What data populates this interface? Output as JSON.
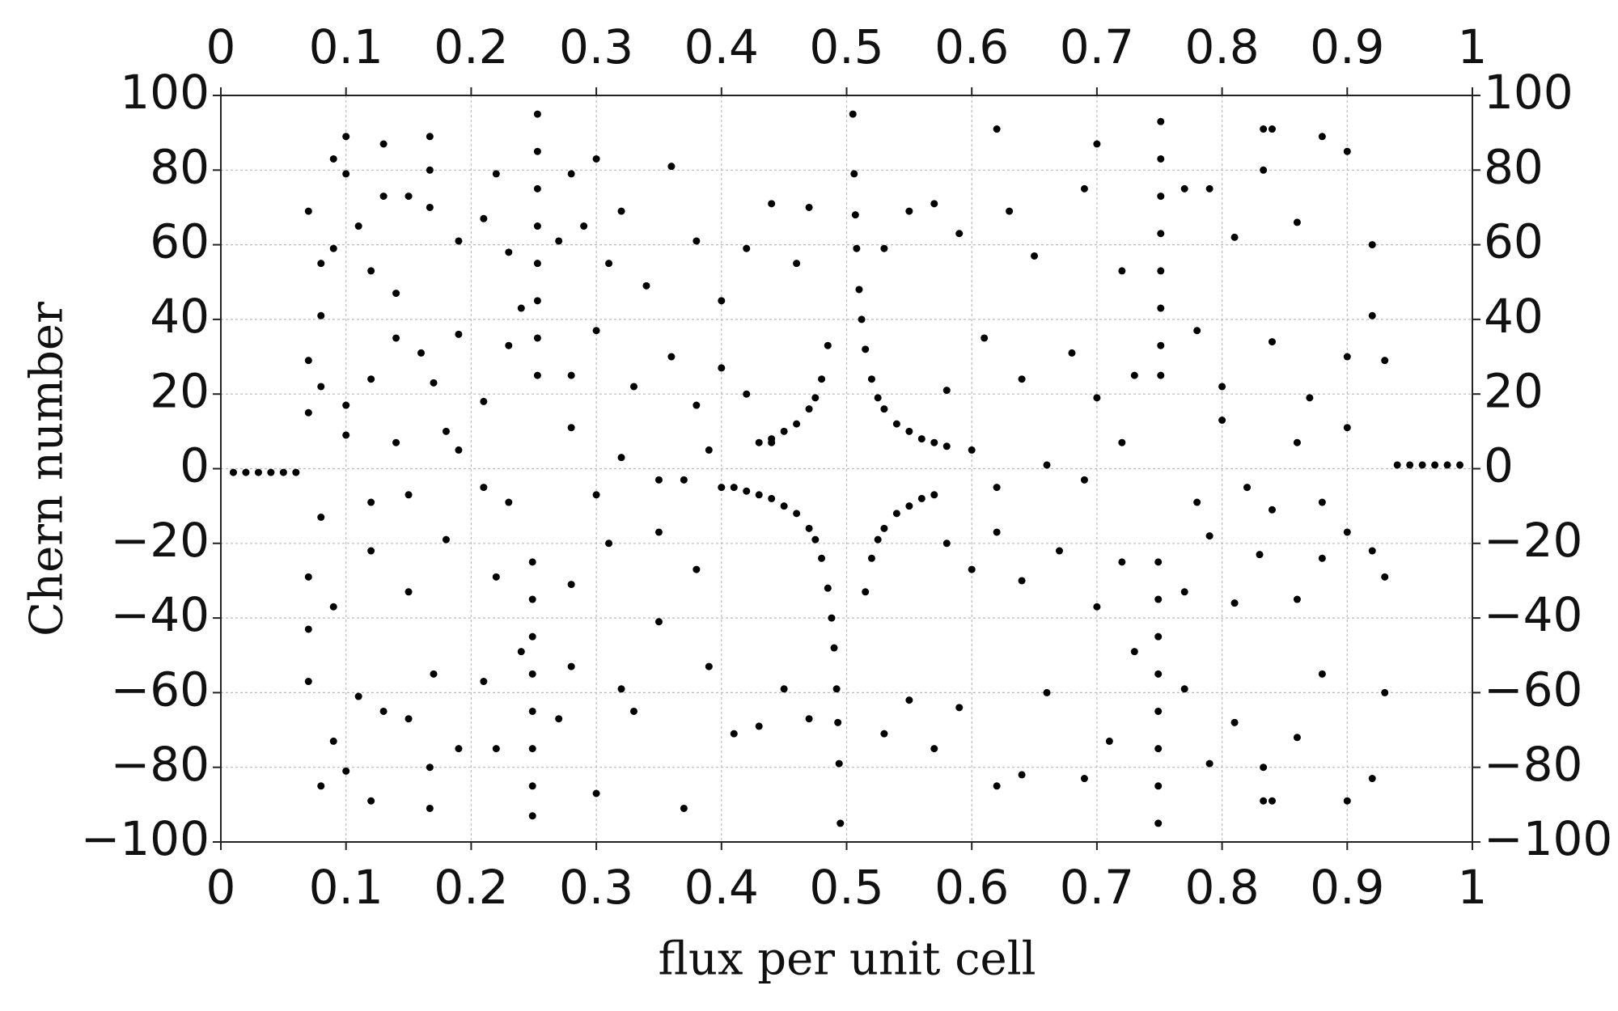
{
  "chart_data": {
    "type": "scatter",
    "x_label": "flux per unit cell",
    "y_label": "Chern number",
    "color": "#000000",
    "grid": true,
    "xlim": [
      0,
      1
    ],
    "ylim": [
      -100,
      100
    ],
    "xticks": [
      0,
      0.1,
      0.2,
      0.3,
      0.4,
      0.5,
      0.6,
      0.7,
      0.8,
      0.9,
      1
    ],
    "yticks": [
      {
        "value": -100,
        "label": "−100"
      },
      {
        "value": -80,
        "label": "−80"
      },
      {
        "value": -60,
        "label": "−60"
      },
      {
        "value": -40,
        "label": "−40"
      },
      {
        "value": -20,
        "label": "−20"
      },
      0,
      20,
      40,
      60,
      80,
      100
    ],
    "x": [
      0.505,
      0.506,
      0.507,
      0.508,
      0.51,
      0.512,
      0.515,
      0.52,
      0.525,
      0.53,
      0.54,
      0.55,
      0.56,
      0.57,
      0.58,
      0.6,
      0.495,
      0.494,
      0.493,
      0.492,
      0.49,
      0.488,
      0.485,
      0.48,
      0.475,
      0.47,
      0.46,
      0.45,
      0.44,
      0.43,
      0.42,
      0.4,
      0.485,
      0.48,
      0.475,
      0.47,
      0.46,
      0.45,
      0.44,
      0.43,
      0.515,
      0.52,
      0.525,
      0.53,
      0.54,
      0.55,
      0.56,
      0.57,
      0.01,
      0.02,
      0.03,
      0.04,
      0.05,
      0.06,
      0.94,
      0.95,
      0.96,
      0.97,
      0.98,
      0.99,
      0.249,
      0.249,
      0.249,
      0.249,
      0.249,
      0.249,
      0.249,
      0.249,
      0.253,
      0.253,
      0.253,
      0.253,
      0.253,
      0.253,
      0.253,
      0.253,
      0.749,
      0.749,
      0.749,
      0.749,
      0.749,
      0.749,
      0.749,
      0.749,
      0.751,
      0.751,
      0.751,
      0.751,
      0.751,
      0.751,
      0.751,
      0.751,
      0.167,
      0.167,
      0.167,
      0.167,
      0.167,
      0.833,
      0.833,
      0.833,
      0.833,
      0.14,
      0.15,
      0.18,
      0.19,
      0.21,
      0.23,
      0.28,
      0.3,
      0.32,
      0.35,
      0.37,
      0.39,
      0.41,
      0.44,
      0.62,
      0.66,
      0.69,
      0.72,
      0.78,
      0.8,
      0.82,
      0.84,
      0.86,
      0.88,
      0.9,
      0.12,
      0.1,
      0.08,
      0.07,
      0.07,
      0.08,
      0.08,
      0.09,
      0.09,
      0.1,
      0.1,
      0.11,
      0.12,
      0.13,
      0.13,
      0.14,
      0.15,
      0.16,
      0.19,
      0.21,
      0.22,
      0.23,
      0.24,
      0.27,
      0.28,
      0.29,
      0.3,
      0.31,
      0.32,
      0.34,
      0.36,
      0.38,
      0.4,
      0.42,
      0.44,
      0.46,
      0.47,
      0.07,
      0.07,
      0.08,
      0.09,
      0.1,
      0.11,
      0.12,
      0.13,
      0.15,
      0.17,
      0.19,
      0.21,
      0.22,
      0.24,
      0.27,
      0.28,
      0.3,
      0.32,
      0.33,
      0.35,
      0.37,
      0.39,
      0.41,
      0.43,
      0.45,
      0.47,
      0.53,
      0.55,
      0.57,
      0.59,
      0.62,
      0.64,
      0.66,
      0.69,
      0.71,
      0.73,
      0.77,
      0.79,
      0.81,
      0.84,
      0.86,
      0.88,
      0.9,
      0.92,
      0.93,
      0.53,
      0.55,
      0.57,
      0.59,
      0.62,
      0.63,
      0.65,
      0.69,
      0.7,
      0.72,
      0.77,
      0.79,
      0.81,
      0.84,
      0.86,
      0.88,
      0.9,
      0.92,
      0.93,
      0.07,
      0.08,
      0.1,
      0.12,
      0.14,
      0.17,
      0.19,
      0.21,
      0.23,
      0.28,
      0.3,
      0.33,
      0.36,
      0.38,
      0.4,
      0.42,
      0.58,
      0.6,
      0.62,
      0.64,
      0.67,
      0.7,
      0.72,
      0.77,
      0.79,
      0.81,
      0.83,
      0.86,
      0.88,
      0.9,
      0.92,
      0.93,
      0.07,
      0.09,
      0.12,
      0.15,
      0.18,
      0.22,
      0.28,
      0.31,
      0.35,
      0.38,
      0.58,
      0.61,
      0.64,
      0.68,
      0.7,
      0.73,
      0.78,
      0.8,
      0.84,
      0.87,
      0.9,
      0.92
    ],
    "values": [
      95,
      79,
      68,
      59,
      48,
      40,
      32,
      24,
      19,
      16,
      12,
      10,
      8,
      7,
      6,
      5,
      -95,
      -79,
      -68,
      -59,
      -48,
      -40,
      -32,
      -24,
      -19,
      -16,
      -12,
      -10,
      -8,
      -7,
      -6,
      -5,
      33,
      24,
      19,
      16,
      12,
      10,
      8,
      7,
      -33,
      -24,
      -19,
      -16,
      -12,
      -10,
      -8,
      -7,
      -1,
      -1,
      -1,
      -1,
      -1,
      -1,
      1,
      1,
      1,
      1,
      1,
      1,
      -93,
      -85,
      -75,
      -65,
      -55,
      -45,
      -35,
      -25,
      95,
      85,
      75,
      65,
      55,
      45,
      35,
      25,
      -95,
      -85,
      -75,
      -65,
      -55,
      -45,
      -35,
      -25,
      93,
      83,
      73,
      63,
      53,
      43,
      33,
      25,
      89,
      80,
      70,
      -80,
      -91,
      91,
      80,
      -80,
      -89,
      7,
      -7,
      10,
      5,
      -5,
      -9,
      11,
      -7,
      3,
      -3,
      -3,
      5,
      -5,
      7,
      -5,
      1,
      -3,
      7,
      -9,
      13,
      -5,
      -11,
      7,
      -9,
      11,
      -9,
      9,
      -13,
      15,
      69,
      55,
      41,
      83,
      59,
      89,
      79,
      65,
      53,
      87,
      73,
      47,
      73,
      31,
      61,
      67,
      79,
      58,
      43,
      61,
      79,
      65,
      83,
      55,
      69,
      49,
      81,
      61,
      45,
      59,
      71,
      55,
      70,
      -43,
      -57,
      -85,
      -73,
      -81,
      -61,
      -89,
      -65,
      -67,
      -55,
      -75,
      -57,
      -75,
      -49,
      -67,
      -53,
      -87,
      -59,
      -65,
      -41,
      -91,
      -53,
      -71,
      -69,
      -59,
      -67,
      -71,
      -62,
      -75,
      -64,
      -85,
      -82,
      -60,
      -83,
      -73,
      -49,
      -59,
      -79,
      -68,
      -89,
      -72,
      -55,
      -89,
      -83,
      -60,
      59,
      69,
      71,
      63,
      91,
      69,
      57,
      75,
      87,
      53,
      75,
      75,
      62,
      91,
      66,
      89,
      85,
      60,
      29,
      29,
      22,
      17,
      24,
      35,
      23,
      36,
      18,
      33,
      25,
      37,
      22,
      30,
      17,
      27,
      20,
      -20,
      -27,
      -17,
      -30,
      -22,
      -37,
      -25,
      -33,
      -18,
      -36,
      -23,
      -35,
      -24,
      -17,
      -22,
      -29,
      -29,
      -37,
      -22,
      -33,
      -19,
      -29,
      -31,
      -20,
      -17,
      -27,
      21,
      35,
      24,
      31,
      19,
      25,
      37,
      22,
      34,
      19,
      30,
      41
    ]
  }
}
